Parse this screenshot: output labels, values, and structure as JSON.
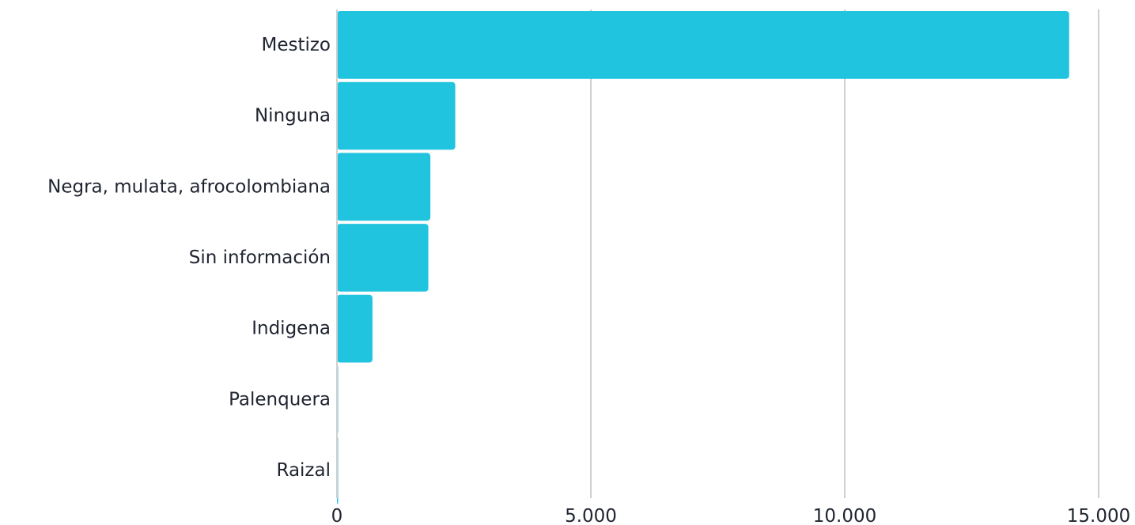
{
  "chart_data": {
    "type": "bar",
    "orientation": "horizontal",
    "categories": [
      "Mestizo",
      "Ninguna",
      "Negra, mulata, afrocolombiana",
      "Sin información",
      "Indigena",
      "Palenquera",
      "Raizal"
    ],
    "values": [
      14420,
      2330,
      1840,
      1800,
      700,
      15,
      10
    ],
    "xlim": [
      0,
      15000
    ],
    "x_ticks": [
      0,
      5000,
      10000,
      15000
    ],
    "x_tick_labels": [
      "0",
      "5.000",
      "10.000",
      "15.000"
    ],
    "title": "",
    "xlabel": "",
    "ylabel": "",
    "grid": true,
    "legend": "none",
    "bar_color": "#21c4df",
    "grid_color": "#cfcfcf",
    "text_color": "#1f2430"
  }
}
